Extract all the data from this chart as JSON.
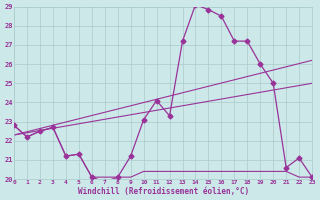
{
  "bg_color": "#cce8e8",
  "grid_color": "#aacccc",
  "line_color": "#993399",
  "xlabel": "Windchill (Refroidissement éolien,°C)",
  "xlim": [
    0,
    23
  ],
  "ylim": [
    20,
    29
  ],
  "yticks": [
    20,
    21,
    22,
    23,
    24,
    25,
    26,
    27,
    28,
    29
  ],
  "xticks": [
    0,
    1,
    2,
    3,
    4,
    5,
    6,
    7,
    8,
    9,
    10,
    11,
    12,
    13,
    14,
    15,
    16,
    17,
    18,
    19,
    20,
    21,
    22,
    23
  ],
  "line1_x": [
    0,
    1,
    2,
    3,
    4,
    5,
    6,
    7,
    8,
    9,
    10,
    11,
    12,
    13,
    14,
    15,
    16,
    17,
    18,
    19,
    20,
    21,
    22,
    23
  ],
  "line1_y": [
    22.8,
    22.2,
    22.5,
    22.7,
    21.2,
    21.3,
    20.1,
    19.85,
    20.1,
    21.2,
    23.1,
    24.1,
    23.3,
    27.2,
    29.1,
    28.85,
    28.5,
    27.2,
    27.2,
    26.0,
    25.0,
    20.6,
    21.1,
    20.1
  ],
  "line2_x": [
    0,
    1,
    2,
    3,
    4,
    5,
    6,
    7,
    8,
    9,
    10,
    11,
    12,
    13,
    14,
    15,
    16,
    17,
    18,
    19,
    20,
    21,
    22,
    23
  ],
  "line2_y": [
    22.8,
    22.2,
    22.5,
    22.7,
    21.2,
    21.3,
    20.1,
    20.1,
    20.1,
    20.1,
    20.4,
    20.4,
    20.4,
    20.4,
    20.4,
    20.4,
    20.4,
    20.4,
    20.4,
    20.4,
    20.4,
    20.4,
    20.1,
    20.1
  ],
  "trend1_x": [
    0,
    23
  ],
  "trend1_y": [
    22.3,
    26.2
  ],
  "trend2_x": [
    0,
    23
  ],
  "trend2_y": [
    22.3,
    25.0
  ]
}
